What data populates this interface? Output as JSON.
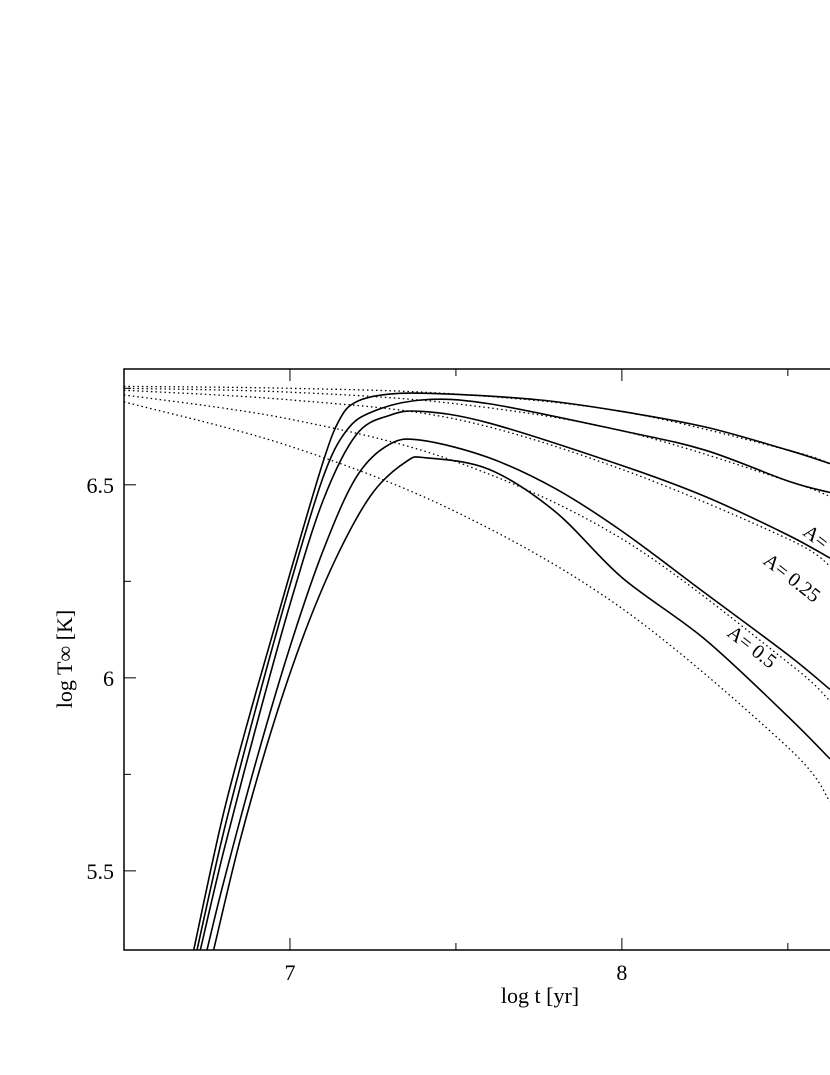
{
  "chart_data": {
    "type": "line",
    "xlabel": "log t [yr]",
    "ylabel": "log T∞ [K]",
    "xlim": [
      6.5,
      8.627
    ],
    "ylim": [
      5.295,
      6.8
    ],
    "xticks": [
      7,
      8
    ],
    "yticks": [
      5.5,
      6,
      6.5
    ],
    "xminorticks": [
      6.5,
      7.5,
      8.5
    ],
    "yminorticks": [
      5.75,
      6.25,
      6.75
    ],
    "series": [
      {
        "style": "solid",
        "color": "#000",
        "x": [
          6.71,
          6.8,
          6.9,
          7.0,
          7.1,
          7.15,
          7.2,
          7.3,
          7.45,
          7.75,
          8.0,
          8.25,
          8.5,
          8.627
        ],
        "values": [
          5.295,
          5.65,
          5.97,
          6.27,
          6.56,
          6.67,
          6.715,
          6.735,
          6.736,
          6.72,
          6.69,
          6.65,
          6.59,
          6.555
        ]
      },
      {
        "style": "solid",
        "color": "#000",
        "x": [
          6.72,
          6.8,
          6.9,
          7.0,
          7.1,
          7.17,
          7.25,
          7.4,
          7.6,
          8.0,
          8.25,
          8.5,
          8.627
        ],
        "values": [
          5.295,
          5.6,
          5.93,
          6.24,
          6.52,
          6.64,
          6.69,
          6.72,
          6.71,
          6.64,
          6.59,
          6.51,
          6.48
        ]
      },
      {
        "style": "solid",
        "color": "#000",
        "x": [
          6.73,
          6.8,
          6.9,
          7.0,
          7.1,
          7.2,
          7.3,
          7.4,
          7.6,
          8.0,
          8.25,
          8.5,
          8.627
        ],
        "values": [
          5.295,
          5.55,
          5.88,
          6.19,
          6.46,
          6.63,
          6.68,
          6.69,
          6.66,
          6.55,
          6.47,
          6.37,
          6.31
        ]
      },
      {
        "style": "solid",
        "color": "#000",
        "x": [
          6.75,
          6.8,
          6.9,
          7.0,
          7.1,
          7.2,
          7.3,
          7.4,
          7.6,
          7.8,
          8.0,
          8.25,
          8.5,
          8.627
        ],
        "values": [
          5.295,
          5.47,
          5.79,
          6.08,
          6.33,
          6.52,
          6.605,
          6.615,
          6.57,
          6.49,
          6.38,
          6.22,
          6.06,
          5.97
        ]
      },
      {
        "style": "solid",
        "color": "#000",
        "x": [
          6.77,
          6.85,
          6.95,
          7.05,
          7.15,
          7.25,
          7.35,
          7.41,
          7.6,
          7.8,
          8.0,
          8.25,
          8.5,
          8.627
        ],
        "values": [
          5.295,
          5.58,
          5.88,
          6.13,
          6.33,
          6.48,
          6.56,
          6.57,
          6.54,
          6.43,
          6.26,
          6.1,
          5.9,
          5.79
        ]
      },
      {
        "style": "dotted",
        "color": "#000",
        "x": [
          6.5,
          7.0,
          7.5,
          8.0,
          8.5,
          8.627
        ],
        "values": [
          6.755,
          6.75,
          6.735,
          6.69,
          6.59,
          6.555
        ]
      },
      {
        "style": "dotted",
        "color": "#000",
        "x": [
          6.5,
          7.0,
          7.5,
          8.0,
          8.5,
          8.627
        ],
        "values": [
          6.75,
          6.74,
          6.71,
          6.64,
          6.51,
          6.47
        ]
      },
      {
        "style": "dotted",
        "color": "#000",
        "x": [
          6.5,
          7.0,
          7.5,
          8.0,
          8.5,
          8.627
        ],
        "values": [
          6.745,
          6.72,
          6.67,
          6.54,
          6.36,
          6.29
        ]
      },
      {
        "style": "dotted",
        "color": "#000",
        "x": [
          6.5,
          7.0,
          7.5,
          8.0,
          8.5,
          8.627
        ],
        "values": [
          6.733,
          6.67,
          6.56,
          6.36,
          6.04,
          5.94
        ]
      },
      {
        "style": "dotted",
        "color": "#000",
        "x": [
          6.5,
          7.0,
          7.5,
          8.0,
          8.5,
          8.627
        ],
        "values": [
          6.715,
          6.6,
          6.43,
          6.18,
          5.82,
          5.68
        ]
      }
    ],
    "annotations": [
      "A= 0.5",
      "A= 0.25",
      "A="
    ]
  }
}
